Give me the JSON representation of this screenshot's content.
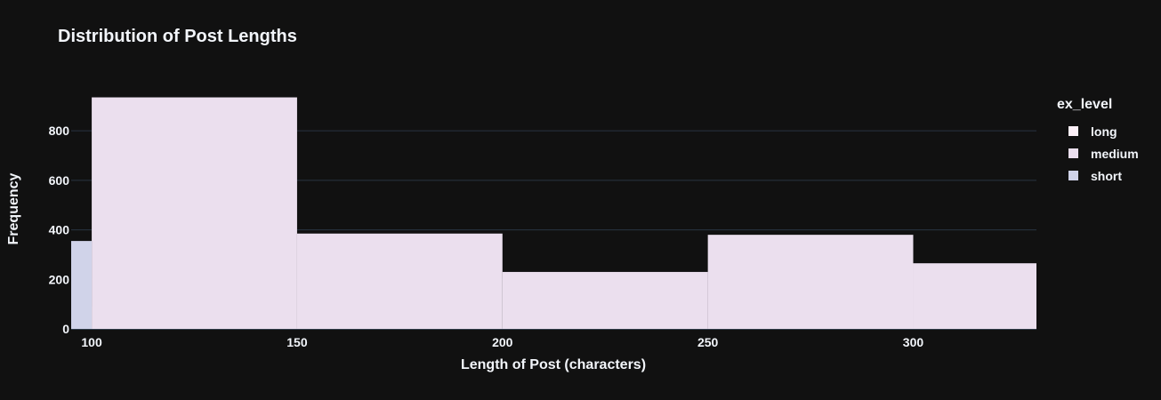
{
  "chart_data": {
    "type": "histogram",
    "title": "Distribution of Post Lengths",
    "xlabel": "Length of Post (characters)",
    "ylabel": "Frequency",
    "xlim": [
      95,
      330
    ],
    "ylim": [
      0,
      980
    ],
    "x_ticks": [
      100,
      150,
      200,
      250,
      300
    ],
    "y_ticks": [
      0,
      200,
      400,
      600,
      800
    ],
    "legend_title": "ex_level",
    "legend_position": "right",
    "barmode": "overlay",
    "grid": true,
    "series": [
      {
        "name": "long",
        "color": "#fdf0f8",
        "bins": [
          {
            "x0": 300,
            "x1": 330,
            "value": 80
          }
        ]
      },
      {
        "name": "medium",
        "color": "#ebdfee",
        "bins": [
          {
            "x0": 95,
            "x1": 100,
            "value": 90
          },
          {
            "x0": 100,
            "x1": 150,
            "value": 935
          },
          {
            "x0": 150,
            "x1": 200,
            "value": 385
          },
          {
            "x0": 200,
            "x1": 250,
            "value": 230
          },
          {
            "x0": 250,
            "x1": 300,
            "value": 380
          },
          {
            "x0": 300,
            "x1": 330,
            "value": 265
          }
        ]
      },
      {
        "name": "short",
        "color": "#d0d3e9",
        "bins": [
          {
            "x0": 95,
            "x1": 100,
            "value": 355
          }
        ]
      }
    ]
  }
}
